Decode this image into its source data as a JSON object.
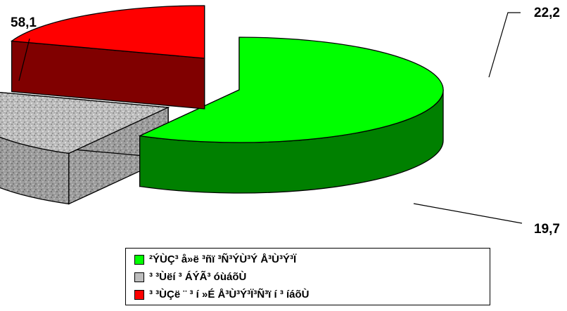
{
  "chart_data": {
    "type": "pie",
    "variant": "3d-exploded",
    "title": "",
    "slices": [
      {
        "label": "²ÝÙÇ³ å»ë ³ñï ³Ñ³ÝÙ³Ý Å³Ù³Ý³Ï",
        "value": 58.1,
        "display": "58,1",
        "color": "#00ff00",
        "side_color": "#008000"
      },
      {
        "label": "³ ³Ùëí ³ ÁÝÃ³ óùáõÙ",
        "value": 22.2,
        "display": "22,2",
        "color": "#c0c0c0",
        "side_color": "#9a9a9a"
      },
      {
        "label": "³ ³ÙÇë ¨ ³ í »É Å³Ù³Ý³Ï³Ñ³ï í ³ íáõÙ",
        "value": 19.7,
        "display": "19,7",
        "color": "#ff0000",
        "side_color": "#800000"
      }
    ],
    "legend_position": "bottom"
  }
}
